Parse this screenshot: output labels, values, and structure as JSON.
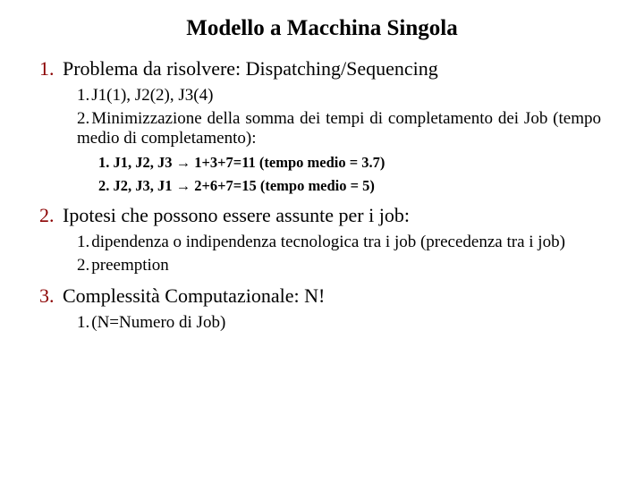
{
  "title": "Modello a Macchina Singola",
  "item1": {
    "num": "1.",
    "text": "Problema da risolvere: Dispatching/Sequencing",
    "sub1": {
      "num": "1.",
      "text": "J1(1), J2(2), J3(4)"
    },
    "sub2": {
      "num": "2.",
      "text": "Minimizzazione della somma dei tempi di completamento dei Job (tempo medio di completamento):"
    },
    "detail1": {
      "num": "1.",
      "seq": "J1, J2, J3",
      "calc": "1+3+7=11 (tempo medio = 3.7)"
    },
    "detail2": {
      "num": "2.",
      "seq": "J2, J3, J1",
      "calc": "2+6+7=15 (tempo medio = 5)"
    }
  },
  "item2": {
    "num": "2.",
    "text": "Ipotesi che possono essere assunte per i job:",
    "sub1": {
      "num": "1.",
      "text": "dipendenza o indipendenza tecnologica tra i job (precedenza tra i job)"
    },
    "sub2": {
      "num": "2.",
      "text": "preemption"
    }
  },
  "item3": {
    "num": "3.",
    "text": "Complessità Computazionale: N!",
    "sub1": {
      "num": "1.",
      "text": "(N=Numero di Job)"
    }
  },
  "colors": {
    "text": "#000000",
    "num": "#8b0000",
    "background": "#ffffff"
  },
  "fonts": {
    "family": "Times New Roman",
    "title_size": 25,
    "level1_size": 22,
    "level2_size": 19,
    "level3_size": 16.5
  },
  "arrow_glyph": "→"
}
